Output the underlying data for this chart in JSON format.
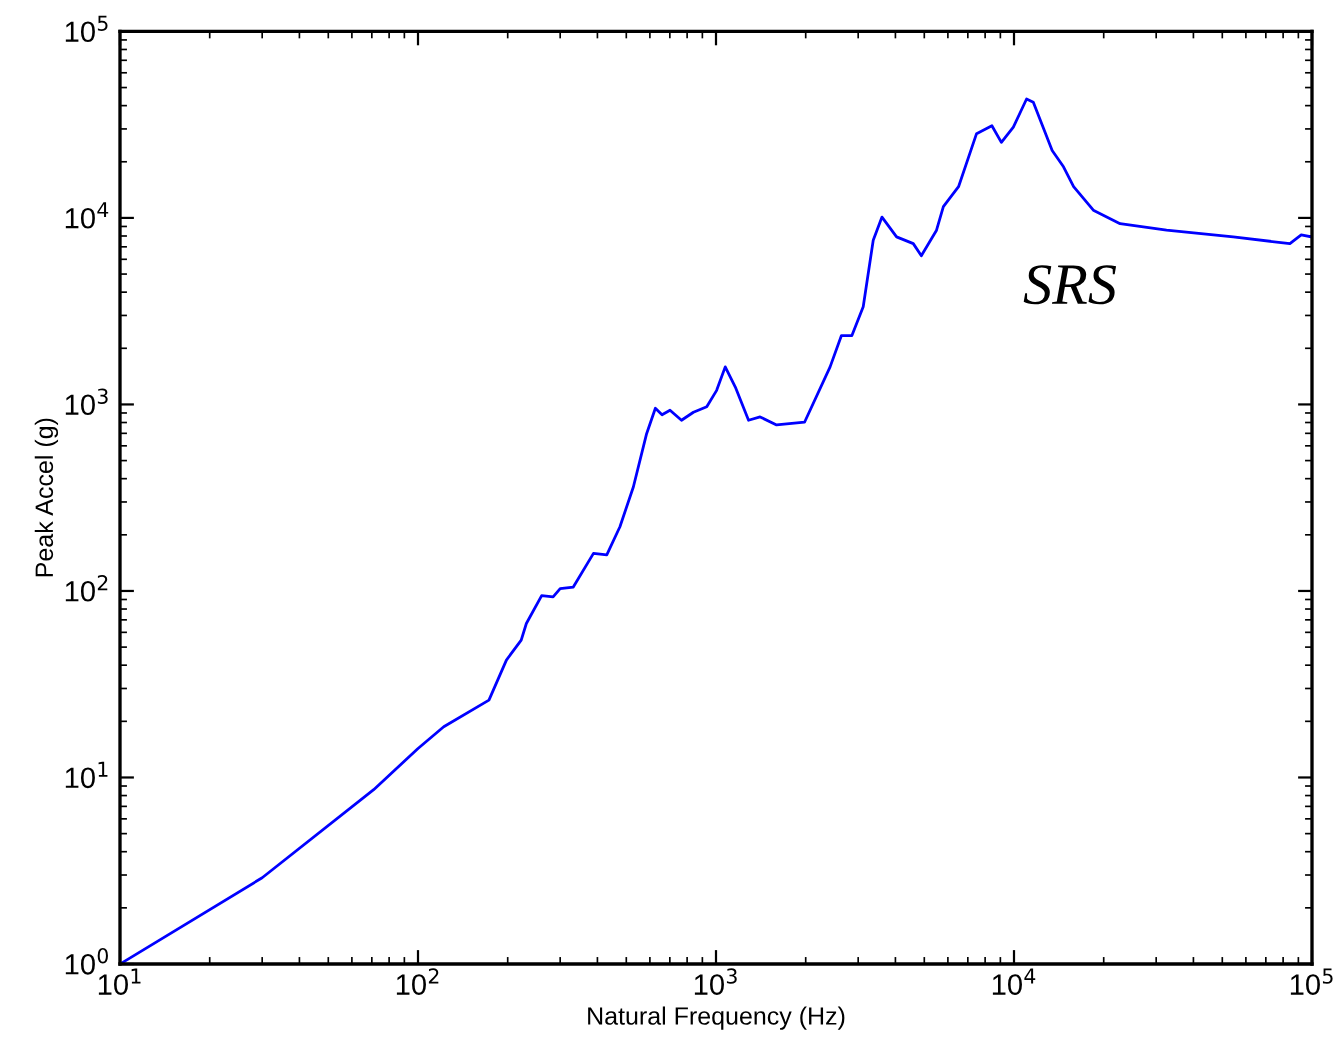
{
  "chart_data": {
    "type": "line",
    "xlabel": "Natural Frequency (Hz)",
    "ylabel": "Peak Accel (g)",
    "log": "xy",
    "grid": false,
    "marker": "none",
    "line_style": "solid",
    "xlim": [
      10,
      100000
    ],
    "ylim": [
      1,
      100000
    ],
    "xticks": [
      {
        "value": 10,
        "label": "10$^{1}$"
      },
      {
        "value": 100,
        "label": "10$^{2}$"
      },
      {
        "value": 1000,
        "label": "10$^{3}$"
      },
      {
        "value": 10000,
        "label": "10$^{4}$"
      },
      {
        "value": 100000,
        "label": "10$^{5}$"
      }
    ],
    "yticks": [
      {
        "value": 1,
        "label": "10$^{0}$"
      },
      {
        "value": 10,
        "label": "10$^{1}$"
      },
      {
        "value": 100,
        "label": "10$^{2}$"
      },
      {
        "value": 1000,
        "label": "10$^{3}$"
      },
      {
        "value": 10000,
        "label": "10$^{4}$"
      },
      {
        "value": 100000,
        "label": "10$^{5}$"
      }
    ],
    "annotations": [
      "SRS"
    ],
    "series": [
      {
        "color": "#0000ff",
        "x": [
          10,
          30,
          71,
          100,
          122,
          173,
          198,
          222,
          231,
          260,
          284,
          300,
          332,
          388,
          430,
          476,
          528,
          585,
          626,
          659,
          701,
          766,
          840,
          931,
          1005,
          1074,
          1161,
          1286,
          1406,
          1597,
          1982,
          2415,
          2636,
          2858,
          3119,
          3370,
          3606,
          4036,
          4592,
          4887,
          5496,
          5794,
          6515,
          7487,
          8430,
          9070,
          9950,
          11020,
          11610,
          13430,
          14660,
          15850,
          18460,
          22700,
          32500,
          54400,
          84300,
          92000,
          100000
        ],
        "values": [
          1,
          2.9,
          8.6,
          14.3,
          18.7,
          26,
          42.6,
          54.5,
          66.9,
          94.5,
          93,
          103,
          105,
          159,
          156,
          221,
          361,
          697,
          954,
          880,
          931,
          823,
          908,
          971,
          1190,
          1590,
          1240,
          823,
          857,
          777,
          803,
          1590,
          2340,
          2340,
          3340,
          7590,
          10100,
          7910,
          7280,
          6270,
          8590,
          11500,
          14700,
          28300,
          31200,
          25400,
          30700,
          43400,
          41700,
          23000,
          18800,
          14700,
          11000,
          9310,
          8590,
          7910,
          7280,
          8110,
          7900
        ]
      }
    ]
  }
}
